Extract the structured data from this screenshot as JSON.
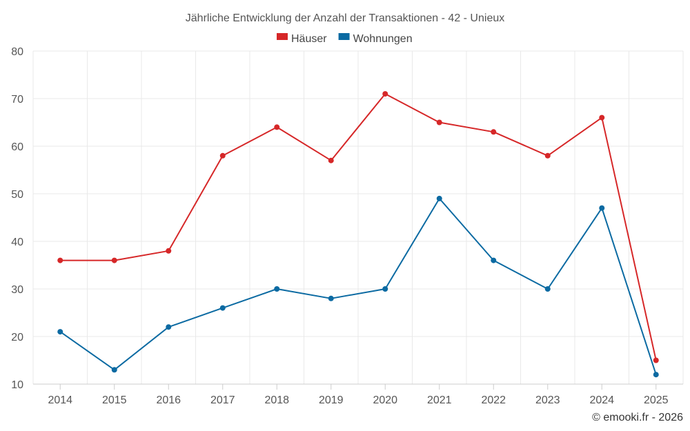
{
  "chart_data": {
    "type": "line",
    "title": "Jährliche Entwicklung der Anzahl der Transaktionen - 42 - Unieux",
    "categories": [
      "2014",
      "2015",
      "2016",
      "2017",
      "2018",
      "2019",
      "2020",
      "2021",
      "2022",
      "2023",
      "2024",
      "2025"
    ],
    "series": [
      {
        "name": "Häuser",
        "color": "#d62728",
        "values": [
          36,
          36,
          38,
          58,
          64,
          57,
          71,
          65,
          63,
          58,
          66,
          15
        ]
      },
      {
        "name": "Wohnungen",
        "color": "#0b6aa2",
        "values": [
          21,
          13,
          22,
          26,
          30,
          28,
          30,
          49,
          36,
          30,
          47,
          12
        ]
      }
    ],
    "xlabel": "",
    "ylabel": "",
    "ylim": [
      10,
      80
    ],
    "yticks": [
      10,
      20,
      30,
      40,
      50,
      60,
      70,
      80
    ],
    "grid": true,
    "legend_position": "top-center"
  },
  "credit": "© emooki.fr - 2026"
}
